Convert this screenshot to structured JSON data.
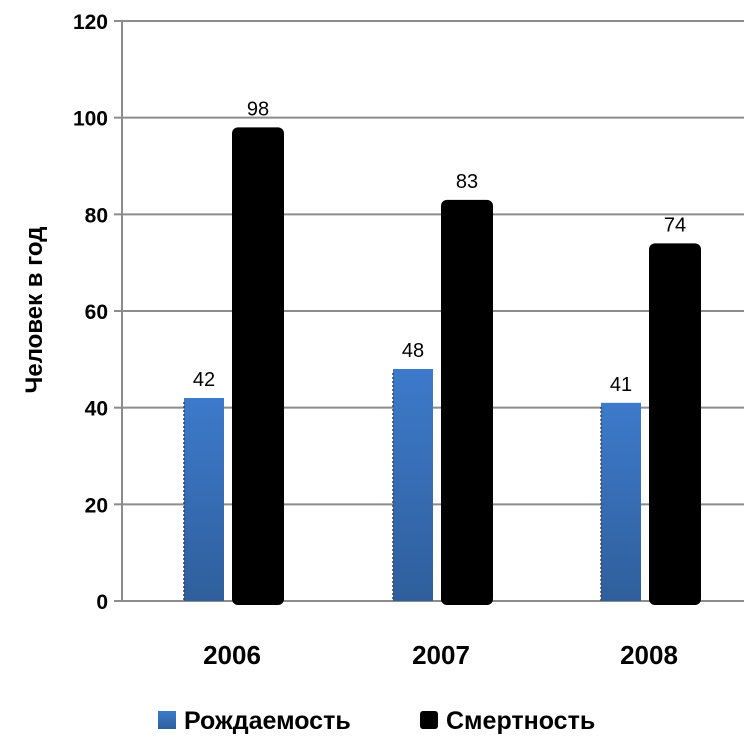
{
  "chart_data": {
    "type": "bar",
    "categories": [
      "2006",
      "2007",
      "2008"
    ],
    "series": [
      {
        "name": "Рождаемость",
        "values": [
          42,
          48,
          41
        ],
        "color": "#3a73bd"
      },
      {
        "name": "Смертность",
        "values": [
          98,
          83,
          74
        ],
        "color": "#000000"
      }
    ],
    "ylabel": "Человек в год",
    "xlabel": "",
    "ylim": [
      0,
      120
    ],
    "yticks": [
      0,
      20,
      40,
      60,
      80,
      100,
      120
    ],
    "grid": true,
    "legend": "bottom"
  }
}
